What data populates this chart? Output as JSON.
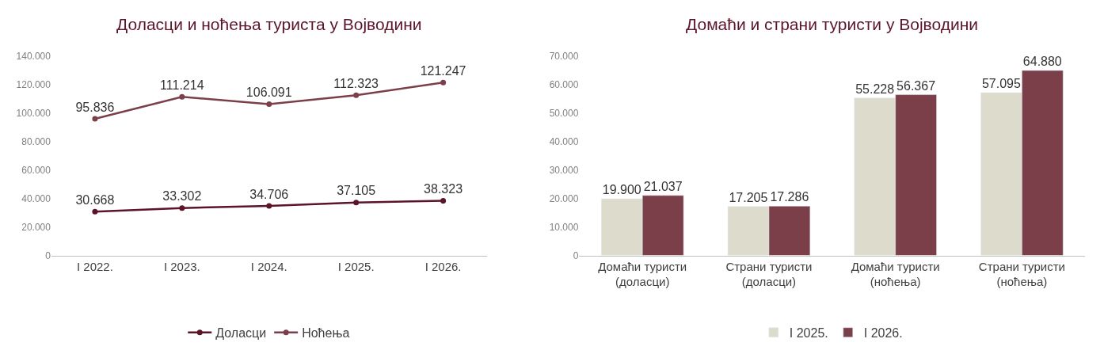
{
  "chart_data": [
    {
      "type": "line",
      "title": "Доласци и ноћења туриста у Војводини",
      "categories": [
        "I 2022.",
        "I 2023.",
        "I 2024.",
        "I 2025.",
        "I 2026."
      ],
      "series": [
        {
          "name": "Доласци",
          "color": "#5c1428",
          "values": [
            30668,
            33302,
            34706,
            37105,
            38323
          ],
          "value_labels": [
            "30.668",
            "33.302",
            "34.706",
            "37.105",
            "38.323"
          ]
        },
        {
          "name": "Ноћења",
          "color": "#7b3f4a",
          "values": [
            95836,
            111214,
            106091,
            112323,
            121247
          ],
          "value_labels": [
            "95.836",
            "111.214",
            "106.091",
            "112.323",
            "121.247"
          ]
        }
      ],
      "ylim": [
        0,
        140000
      ],
      "yticks": [
        0,
        {
          "value": 20000,
          "label": "20.000"
        },
        {
          "value": 40000,
          "label": "40.000"
        },
        {
          "value": 60000,
          "label": "60.000"
        },
        {
          "value": 80000,
          "label": "80.000"
        },
        {
          "value": 100000,
          "label": "100.000"
        },
        {
          "value": 120000,
          "label": "120.000"
        },
        {
          "value": 140000,
          "label": "140.000"
        }
      ],
      "marker": "circle",
      "line_style": "solid",
      "legend": "bottom"
    },
    {
      "type": "bar",
      "title": "Домаћи и страни туристи у Војводини",
      "categories": [
        "Домаћи туристи\n(доласци)",
        "Страни туристи\n(доласци)",
        "Домаћи туристи\n(ноћења)",
        "Страни туристи\n(ноћења)"
      ],
      "series": [
        {
          "name": "I 2025.",
          "color": "#dddbcb",
          "values": [
            19900,
            17205,
            55228,
            57095
          ],
          "value_labels": [
            "19.900",
            "17.205",
            "55.228",
            "57.095"
          ]
        },
        {
          "name": "I 2026.",
          "color": "#7b3f4a",
          "values": [
            21037,
            17286,
            56367,
            64880
          ],
          "value_labels": [
            "21.037",
            "17.286",
            "56.367",
            "64.880"
          ]
        }
      ],
      "ylim": [
        0,
        70000
      ],
      "yticks": [
        0,
        {
          "value": 10000,
          "label": "10.000"
        },
        {
          "value": 20000,
          "label": "20.000"
        },
        {
          "value": 30000,
          "label": "30.000"
        },
        {
          "value": 40000,
          "label": "40.000"
        },
        {
          "value": 50000,
          "label": "50.000"
        },
        {
          "value": 60000,
          "label": "60.000"
        },
        {
          "value": 70000,
          "label": "70.000"
        }
      ],
      "legend": "bottom"
    }
  ]
}
